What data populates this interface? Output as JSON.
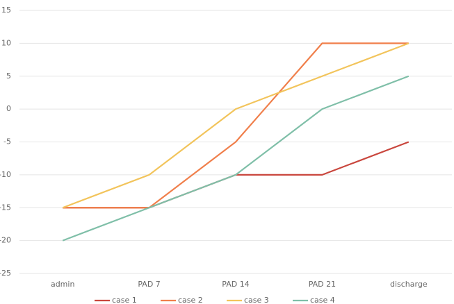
{
  "chart_data": {
    "type": "line",
    "categories": [
      "admin",
      "PAD 7",
      "PAD 14",
      "PAD 21",
      "discharge"
    ],
    "series": [
      {
        "name": "case 1",
        "color": "#c9463d",
        "values": [
          -15,
          -15,
          -10,
          -10,
          -5
        ]
      },
      {
        "name": "case 2",
        "color": "#f07f4b",
        "values": [
          -15,
          -15,
          -5,
          10,
          10
        ]
      },
      {
        "name": "case 3",
        "color": "#f2c45b",
        "values": [
          -15,
          -10,
          0,
          5,
          10
        ]
      },
      {
        "name": "case 4",
        "color": "#7fbfa8",
        "values": [
          -20,
          -15,
          -10,
          0,
          5
        ]
      }
    ],
    "ylim": [
      -25,
      15
    ],
    "yticks": [
      -25,
      -20,
      -15,
      -10,
      -5,
      0,
      5,
      10,
      15
    ],
    "grid": true,
    "legend": "bottom"
  }
}
